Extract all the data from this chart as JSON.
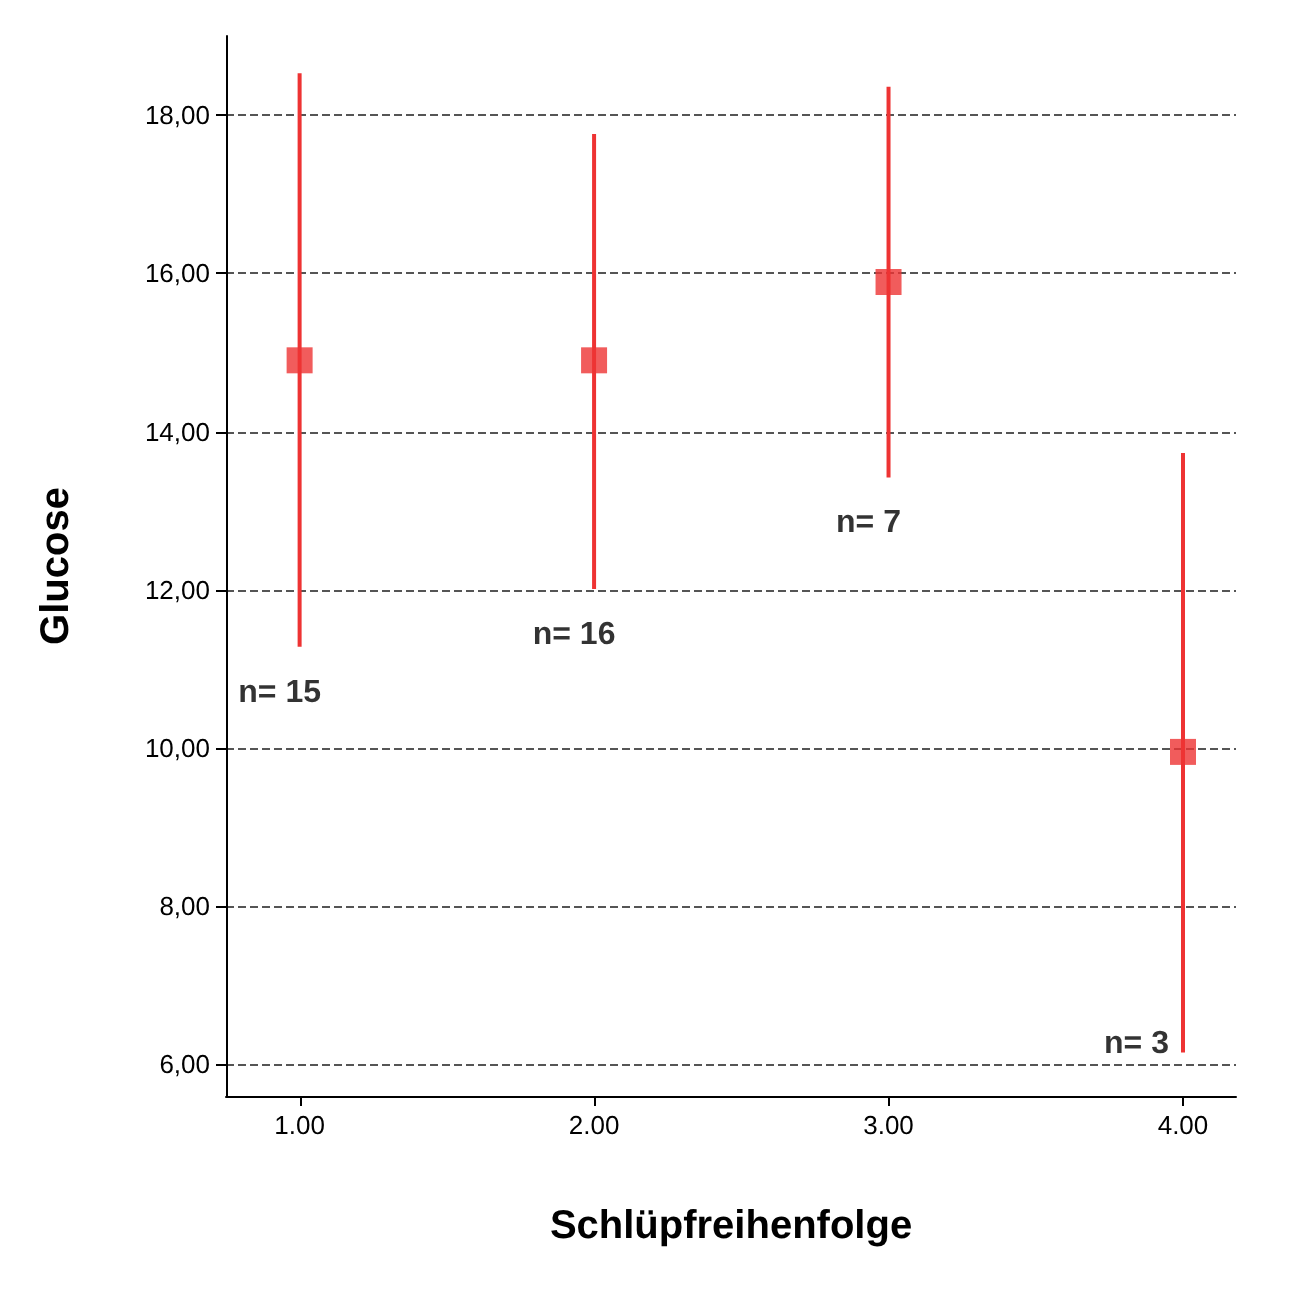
{
  "chart_data": {
    "type": "scatter",
    "xlabel": "Schlüpfreihenfolge",
    "ylabel": "Glucose",
    "x": [
      1,
      2,
      3,
      4
    ],
    "values": [
      14.9,
      14.9,
      15.89,
      9.95
    ],
    "errors": [
      [
        11.28,
        18.53
      ],
      [
        12.01,
        17.76
      ],
      [
        13.42,
        18.36
      ],
      [
        6.15,
        13.73
      ]
    ],
    "color": "#ee3333",
    "marker": "square",
    "xlim": [
      0.75,
      4.18
    ],
    "xticks": [
      {
        "value": 1,
        "label": "1.00"
      },
      {
        "value": 2,
        "label": "2.00"
      },
      {
        "value": 3,
        "label": "3.00"
      },
      {
        "value": 4,
        "label": "4.00"
      }
    ],
    "ylim": [
      5.6,
      19
    ],
    "yticks": [
      {
        "value": 6,
        "label": "6,00"
      },
      {
        "value": 8,
        "label": "8,00"
      },
      {
        "value": 10,
        "label": "10,00"
      },
      {
        "value": 12,
        "label": "12,00"
      },
      {
        "value": 14,
        "label": "14,00"
      },
      {
        "value": 16,
        "label": "16,00"
      },
      {
        "value": 18,
        "label": "18,00"
      }
    ],
    "grid": "y",
    "line_style": "dashed",
    "annotations": [
      "n= 15",
      "n= 16",
      "n= 7",
      "n= 3"
    ]
  }
}
